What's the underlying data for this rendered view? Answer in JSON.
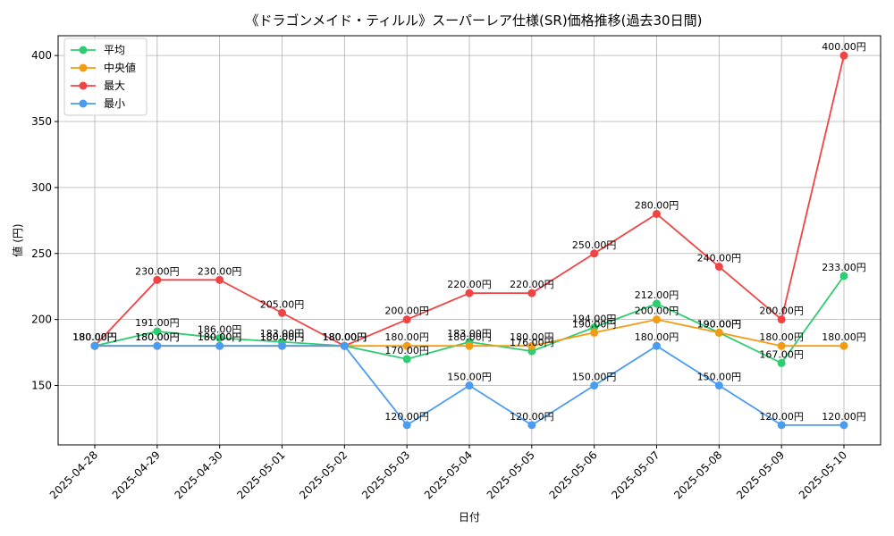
{
  "chart_data": {
    "type": "line",
    "title": "《ドラゴンメイド・ティルル》スーパーレア仕様(SR)価格推移(過去30日間)",
    "xlabel": "日付",
    "ylabel": "値 (円)",
    "ylim": [
      105,
      415
    ],
    "yticks": [
      150,
      200,
      250,
      300,
      350,
      400
    ],
    "grid": true,
    "legend_position": "top-left",
    "label_suffix": "円",
    "categories": [
      "2025-04-28",
      "2025-04-29",
      "2025-04-30",
      "2025-05-01",
      "2025-05-02",
      "2025-05-03",
      "2025-05-04",
      "2025-05-05",
      "2025-05-06",
      "2025-05-07",
      "2025-05-08",
      "2025-05-09",
      "2025-05-10"
    ],
    "series": [
      {
        "name": "平均",
        "color": "#2ecc71",
        "values": [
          180,
          191,
          186,
          183,
          180,
          170,
          183,
          176,
          194,
          212,
          190,
          167,
          233
        ]
      },
      {
        "name": "中央値",
        "color": "#f39c12",
        "values": [
          180,
          180,
          180,
          180,
          180,
          180,
          180,
          180,
          190,
          200,
          190,
          180,
          180
        ]
      },
      {
        "name": "最大",
        "color": "#f04444",
        "values": [
          180,
          230,
          230,
          205,
          180,
          200,
          220,
          220,
          250,
          280,
          240,
          200,
          400
        ]
      },
      {
        "name": "最小",
        "color": "#4a9cf0",
        "values": [
          180,
          180,
          180,
          180,
          180,
          120,
          150,
          120,
          150,
          180,
          150,
          120,
          120
        ]
      }
    ]
  }
}
